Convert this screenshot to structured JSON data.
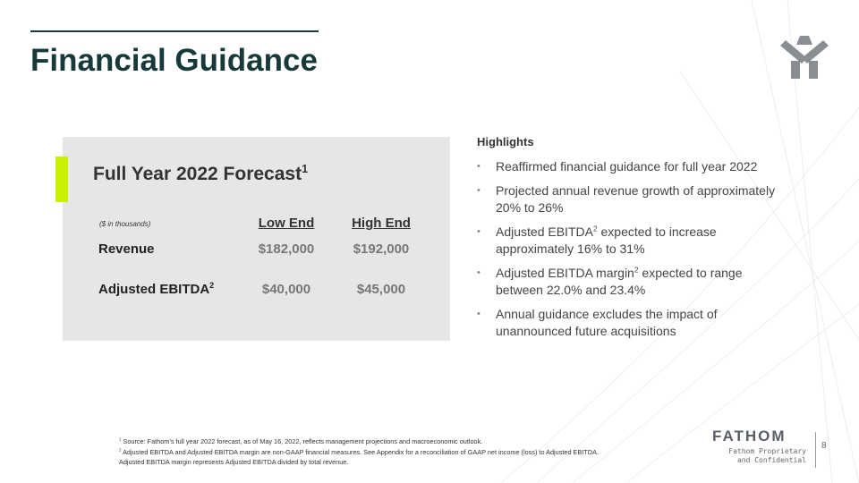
{
  "header": {
    "title": "Financial Guidance"
  },
  "forecast": {
    "title": "Full Year 2022 Forecast",
    "title_note": "1",
    "units": "($ in thousands)",
    "columns": [
      "Low End",
      "High End"
    ],
    "rows": [
      {
        "label": "Revenue",
        "values": [
          "$182,000",
          "$192,000"
        ]
      },
      {
        "label": "Adjusted EBITDA",
        "note": "2",
        "values": [
          "$40,000",
          "$45,000"
        ]
      }
    ]
  },
  "highlights": {
    "heading": "Highlights",
    "items": [
      [
        {
          "text": "Reaffirmed financial guidance for full year 2022"
        }
      ],
      [
        {
          "text": "Projected annual revenue growth of approximately 20% to 26%"
        }
      ],
      [
        {
          "text": "Adjusted EBITDA"
        },
        {
          "sup": "2"
        },
        {
          "text": " expected to increase approximately 16% to 31%"
        }
      ],
      [
        {
          "text": "Adjusted EBITDA margin"
        },
        {
          "sup": "2"
        },
        {
          "text": " expected to range between 22.0% and 23.4%"
        }
      ],
      [
        {
          "text": "Annual guidance excludes the impact of unannounced future acquisitions"
        }
      ]
    ]
  },
  "footnotes": [
    {
      "marker": "1",
      "text": "Source: Fathom’s full year 2022 forecast, as of May 16, 2022, reflects management projections and macroeconomic outlook."
    },
    {
      "marker": "2",
      "text": "Adjusted EBITDA and Adjusted EBITDA margin are non-GAAP financial measures. See Appendix for a reconciliation of GAAP net income (loss) to Adjusted EBITDA."
    },
    {
      "text": "Adjusted EBITDA margin represents Adjusted EBITDA divided by total revenue."
    }
  ],
  "footer": {
    "logo": "FATHOM",
    "confidential": [
      "Fathom Proprietary",
      "and Confidential"
    ],
    "page": "8"
  }
}
